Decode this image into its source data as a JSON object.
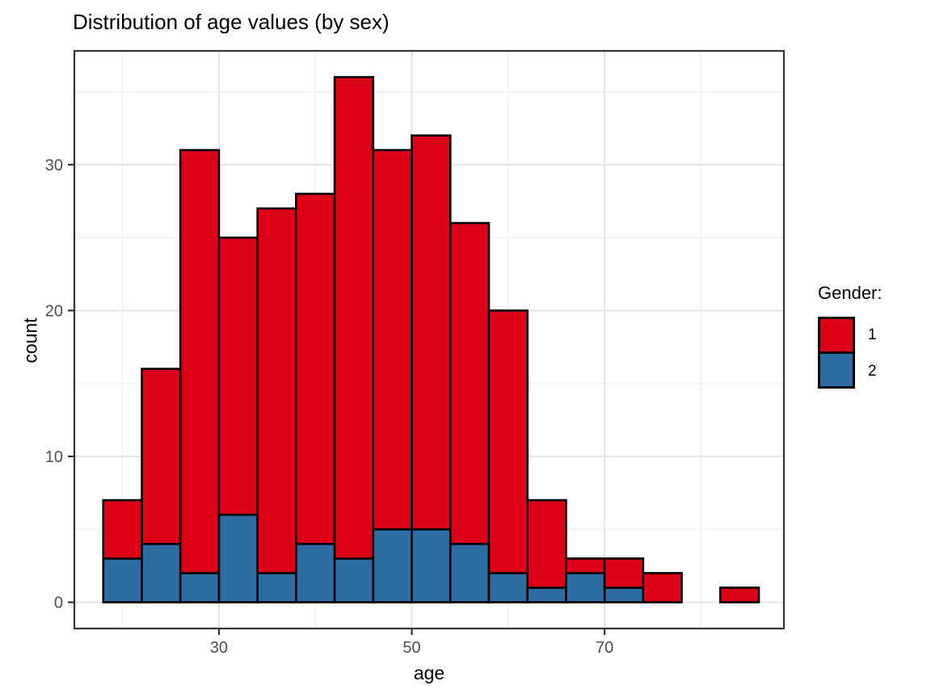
{
  "title": "Distribution of age values (by sex)",
  "colors": {
    "gender1_red": "#DC0018",
    "gender2_blue": "#2E6DA4",
    "bar_border": "#000000",
    "panel_border": "#343434",
    "grid_major": "#E3E3E3",
    "grid_minor": "#F0F0F0",
    "tick_mark": "#333333",
    "axis_text": "#4D4D4D",
    "background": "#FFFFFF"
  },
  "legend": {
    "title": "Gender:",
    "items": [
      {
        "label": "1",
        "color": "#DC0018"
      },
      {
        "label": "2",
        "color": "#2E6DA4"
      }
    ]
  },
  "chart_data": {
    "type": "bar",
    "subtype": "stacked-histogram",
    "title": "Distribution of age values (by sex)",
    "xlabel": "age",
    "ylabel": "count",
    "bin_edges": [
      18,
      22,
      26,
      30,
      34,
      38,
      42,
      46,
      50,
      54,
      58,
      62,
      66,
      70,
      74,
      78,
      82,
      86
    ],
    "series": [
      {
        "name": "1",
        "color": "#DC0018",
        "stack_position": "top",
        "values": [
          4,
          12,
          29,
          19,
          25,
          24,
          33,
          26,
          27,
          22,
          18,
          6,
          1,
          2,
          2,
          0,
          1
        ]
      },
      {
        "name": "2",
        "color": "#2E6DA4",
        "stack_position": "bottom",
        "values": [
          3,
          4,
          2,
          6,
          2,
          4,
          3,
          5,
          5,
          4,
          2,
          1,
          2,
          1,
          0,
          0,
          0
        ]
      }
    ],
    "totals": [
      7,
      16,
      31,
      25,
      27,
      28,
      36,
      31,
      32,
      26,
      20,
      7,
      3,
      3,
      2,
      0,
      1
    ],
    "x_ticks": [
      30,
      50,
      70
    ],
    "x_minor_gridlines": [
      20,
      40,
      60,
      80
    ],
    "y_ticks": [
      0,
      10,
      20,
      30
    ],
    "y_minor_gridlines": [
      5,
      15,
      25,
      35
    ],
    "xlim": [
      15.0,
      88.6
    ],
    "ylim": [
      -1.8,
      37.8
    ],
    "grid": true,
    "legend_position": "right"
  }
}
